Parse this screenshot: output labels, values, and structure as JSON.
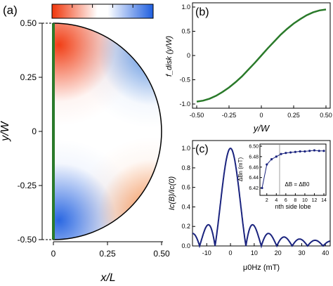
{
  "chart_data": [
    {
      "type": "heatmap",
      "panel_label": "(a)",
      "xlabel": "x/L",
      "ylabel": "y/W",
      "x_ticks": [
        "0",
        "0.25",
        "0.50"
      ],
      "y_ticks": [
        "0.50",
        "0.25",
        "0",
        "-0.25",
        "-0.50"
      ],
      "xlim": [
        0,
        0.5
      ],
      "ylim": [
        -0.5,
        0.5
      ],
      "colors": {
        "negative": "#1f5fe0",
        "positive": "#f0350a",
        "zero": "#ffffff",
        "edge_line": "#2a7a2a"
      },
      "colorbar_segments": 5,
      "shape": "half-disk",
      "pattern": "positive upper-left and lower-right, negative lower-left and upper-right"
    },
    {
      "type": "line",
      "panel_label": "(b)",
      "xlabel": "y/W",
      "ylabel": "f_disk (y/W)",
      "xlim": [
        -0.5,
        0.5
      ],
      "ylim": [
        -1.0,
        1.0
      ],
      "x_ticks": [
        "-0.50",
        "-0.25",
        "0",
        "0.25",
        "0.50"
      ],
      "y_ticks": [
        "1.0",
        "0.5",
        "0",
        "-0.5",
        "-1.0"
      ],
      "color": "#2a7a2a",
      "x": [
        -0.5,
        -0.45,
        -0.4,
        -0.35,
        -0.3,
        -0.25,
        -0.2,
        -0.15,
        -0.1,
        -0.05,
        0,
        0.05,
        0.1,
        0.15,
        0.2,
        0.25,
        0.3,
        0.35,
        0.4,
        0.45,
        0.5
      ],
      "y": [
        -0.95,
        -0.93,
        -0.89,
        -0.83,
        -0.75,
        -0.66,
        -0.55,
        -0.43,
        -0.29,
        -0.15,
        0,
        0.15,
        0.29,
        0.43,
        0.55,
        0.66,
        0.75,
        0.83,
        0.89,
        0.93,
        0.95
      ]
    },
    {
      "type": "line",
      "panel_label": "(c)",
      "xlabel": "μ0Hz (mT)",
      "ylabel": "Ic(B)/Ic(0)",
      "xlim": [
        -16,
        42
      ],
      "ylim": [
        0,
        1.08
      ],
      "x_ticks": [
        "-10",
        "0",
        "10",
        "20",
        "30",
        "40"
      ],
      "y_ticks": [
        "1.0",
        "0.8",
        "0.6",
        "0.4",
        "0.2",
        "0.0"
      ],
      "color": "#1a237e",
      "period_mT": 6.5,
      "inset": {
        "xlabel": "nth side lobe",
        "ylabel": "ΔBn (mT)",
        "annotation": "ΔB = ΔB0",
        "xlim": [
          1,
          14
        ],
        "ylim": [
          6.41,
          6.5
        ],
        "x_ticks": [
          "2",
          "4",
          "6",
          "8",
          "10",
          "12",
          "14"
        ],
        "y_ticks": [
          "6.50",
          "6.48",
          "6.46",
          "6.44",
          "6.42"
        ],
        "x": [
          1,
          2,
          3,
          4,
          5,
          6,
          7,
          8,
          9,
          10,
          11,
          12,
          13,
          14
        ],
        "y": [
          6.42,
          6.465,
          6.475,
          6.48,
          6.485,
          6.487,
          6.488,
          6.489,
          6.49,
          6.49,
          6.491,
          6.492,
          6.491,
          6.491
        ]
      }
    }
  ]
}
